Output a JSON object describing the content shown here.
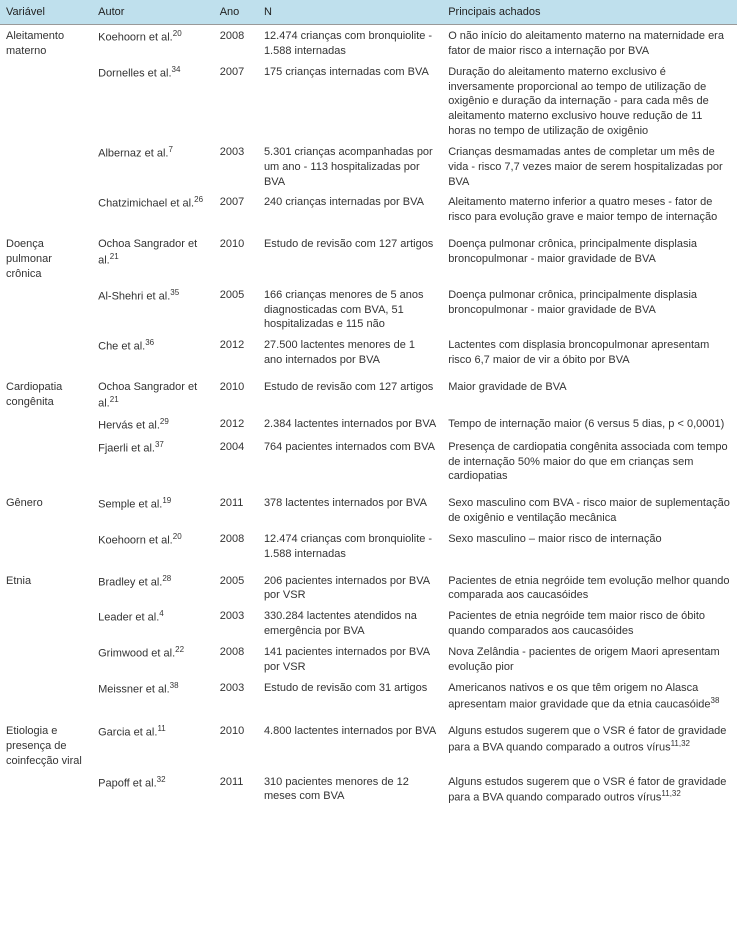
{
  "columns": {
    "variavel": "Variável",
    "autor": "Autor",
    "ano": "Ano",
    "n": "N",
    "achados": "Principais achados"
  },
  "groups": [
    {
      "variavel": "Aleitamento materno",
      "rows": [
        {
          "autor": "Koehoorn et al.",
          "ref": "20",
          "ano": "2008",
          "n": "12.474 crianças com bronquiolite - 1.588 internadas",
          "achados": "O não início do aleitamento materno na maternidade era fator de maior risco a internação por BVA"
        },
        {
          "autor": "Dornelles et al.",
          "ref": "34",
          "ano": "2007",
          "n": "175 crianças internadas com BVA",
          "achados": "Duração do aleitamento materno exclusivo é inversamente proporcional ao tempo de utilização de oxigênio e duração da internação - para cada mês de aleitamento materno exclusivo houve redução de 11 horas no tempo de utilização de oxigênio"
        },
        {
          "autor": "Albernaz et al.",
          "ref": "7",
          "ano": "2003",
          "n": "5.301 crianças acompanhadas por um ano - 113 hospitalizadas por BVA",
          "achados": "Crianças desmamadas antes de completar um mês de vida - risco 7,7 vezes maior de serem hospitalizadas por BVA"
        },
        {
          "autor": "Chatzimichael et al.",
          "ref": "26",
          "ano": "2007",
          "n": "240 crianças internadas por BVA",
          "achados": "Aleitamento materno inferior a quatro meses - fator de risco para evolução grave e maior tempo de internação"
        }
      ]
    },
    {
      "variavel": "Doença pulmonar crônica",
      "rows": [
        {
          "autor": "Ochoa Sangrador et al.",
          "ref": "21",
          "ano": "2010",
          "n": "Estudo de revisão com 127 artigos",
          "achados": "Doença pulmonar crônica, principalmente displasia broncopulmonar - maior gravidade de BVA"
        },
        {
          "autor": "Al-Shehri et al.",
          "ref": "35",
          "ano": "2005",
          "n": "166 crianças menores de 5 anos diagnosticadas com BVA, 51 hospitalizadas e 115 não",
          "achados": "Doença pulmonar crônica, principalmente displasia broncopulmonar - maior gravidade de BVA"
        },
        {
          "autor": "Che et al.",
          "ref": "36",
          "ano": "2012",
          "n": "27.500 lactentes menores de 1 ano internados por BVA",
          "achados": "Lactentes com displasia broncopulmonar apresentam risco 6,7 maior de vir a óbito por BVA"
        }
      ]
    },
    {
      "variavel": "Cardiopatia congênita",
      "rows": [
        {
          "autor": "Ochoa Sangrador et al.",
          "ref": "21",
          "ano": "2010",
          "n": "Estudo de revisão com 127 artigos",
          "achados": "Maior gravidade de BVA"
        },
        {
          "autor": "Hervás et al.",
          "ref": "29",
          "ano": "2012",
          "n": "2.384 lactentes internados por BVA",
          "achados": "Tempo de internação maior (6 versus 5 dias, p < 0,0001)"
        },
        {
          "autor": "Fjaerli et al.",
          "ref": "37",
          "ano": "2004",
          "n": "764 pacientes internados com BVA",
          "achados": "Presença de cardiopatia congênita associada com tempo de internação 50% maior do que em crianças sem cardiopatias"
        }
      ]
    },
    {
      "variavel": "Gênero",
      "rows": [
        {
          "autor": "Semple et al.",
          "ref": "19",
          "ano": "2011",
          "n": "378 lactentes internados por BVA",
          "achados": "Sexo masculino com BVA - risco maior de suplementação de oxigênio e ventilação mecânica"
        },
        {
          "autor": "Koehoorn et al.",
          "ref": "20",
          "ano": "2008",
          "n": "12.474 crianças com bronquiolite - 1.588 internadas",
          "achados": "Sexo masculino – maior risco de internação"
        }
      ]
    },
    {
      "variavel": "Etnia",
      "rows": [
        {
          "autor": "Bradley et al.",
          "ref": "28",
          "ano": "2005",
          "n": "206 pacientes internados por BVA por VSR",
          "achados": "Pacientes de etnia negróide tem evolução melhor quando comparada aos caucasóides"
        },
        {
          "autor": "Leader et al.",
          "ref": "4",
          "ano": "2003",
          "n": "330.284 lactentes atendidos na emergência por BVA",
          "achados": "Pacientes de etnia negróide tem maior risco de óbito quando comparados aos caucasóides"
        },
        {
          "autor": "Grimwood et al.",
          "ref": "22",
          "ano": "2008",
          "n": "141 pacientes internados por BVA por VSR",
          "achados": "Nova Zelândia - pacientes de origem Maori apresentam evolução pior"
        },
        {
          "autor": "Meissner et al.",
          "ref": "38",
          "ano": "2003",
          "n": "Estudo de revisão com 31 artigos",
          "achados": "Americanos nativos e os que têm origem no Alasca apresentam maior gravidade que da etnia caucasóide",
          "achados_ref": "38"
        }
      ]
    },
    {
      "variavel": "Etiologia e presença de coinfecção viral",
      "rows": [
        {
          "autor": "Garcia et al.",
          "ref": "11",
          "ano": "2010",
          "n": "4.800 lactentes internados por BVA",
          "achados": "Alguns estudos sugerem que o VSR é fator de gravidade para a BVA quando comparado a outros vírus",
          "achados_ref": "11,32"
        },
        {
          "autor": "Papoff et al.",
          "ref": "32",
          "ano": "2011",
          "n": "310 pacientes menores de 12 meses com BVA",
          "achados": "Alguns estudos sugerem que o VSR é fator de gravidade para a BVA quando comparado outros vírus",
          "achados_ref": "11,32"
        }
      ]
    }
  ]
}
